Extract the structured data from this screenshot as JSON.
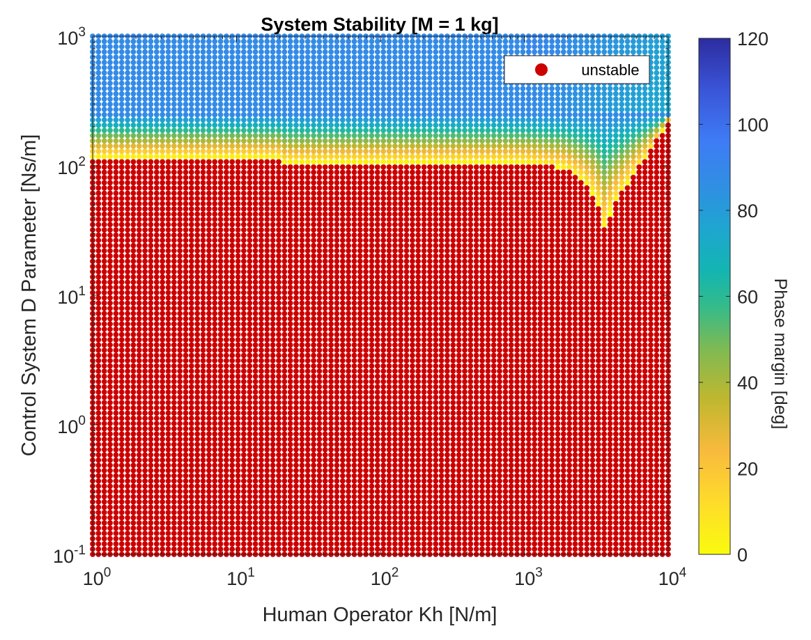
{
  "chart_data": {
    "type": "scatter",
    "title": "System Stability [M = 1 kg]",
    "xlabel": "Human Operator Kh [N/m]",
    "ylabel": "Control System D Parameter [Ns/m]",
    "xscale": "log",
    "yscale": "log",
    "xlim": [
      1,
      10000
    ],
    "ylim": [
      0.1,
      1000
    ],
    "x_ticks": [
      {
        "base": "10",
        "exp": "0"
      },
      {
        "base": "10",
        "exp": "1"
      },
      {
        "base": "10",
        "exp": "2"
      },
      {
        "base": "10",
        "exp": "3"
      },
      {
        "base": "10",
        "exp": "4"
      }
    ],
    "y_ticks": [
      {
        "base": "10",
        "exp": "-1"
      },
      {
        "base": "10",
        "exp": "0"
      },
      {
        "base": "10",
        "exp": "1"
      },
      {
        "base": "10",
        "exp": "2"
      },
      {
        "base": "10",
        "exp": "3"
      }
    ],
    "grid_points_per_axis": 100,
    "colorbar": {
      "label": "Phase margin [deg]",
      "range": [
        0,
        120
      ],
      "ticks": [
        "0",
        "20",
        "40",
        "60",
        "80",
        "100",
        "120"
      ],
      "colormap": "parula"
    },
    "legend": {
      "position": "top-right",
      "entries": [
        {
          "label": "unstable",
          "color": "#cc0000"
        }
      ]
    },
    "stability_boundary": {
      "description": "minimum stable D (Ns/m) as a function of Kh (N/m); below it the system is unstable (red)",
      "kh": [
        1,
        20,
        21,
        1000,
        1900,
        2600,
        3200,
        3600,
        4200,
        5500,
        7500,
        10000
      ],
      "d": [
        115,
        115,
        105,
        105,
        95,
        75,
        55,
        33,
        50,
        80,
        130,
        220
      ]
    },
    "phase_margin_field": {
      "description": "phase margin (deg) on stable side: near 0 at the boundary, rising to ~88 deg above D≈250",
      "plateau_deg": 88,
      "plateau_d": 250
    }
  },
  "colors": {
    "unstable": "#cc0000",
    "background": "#ffffff",
    "axis": "#262626"
  }
}
